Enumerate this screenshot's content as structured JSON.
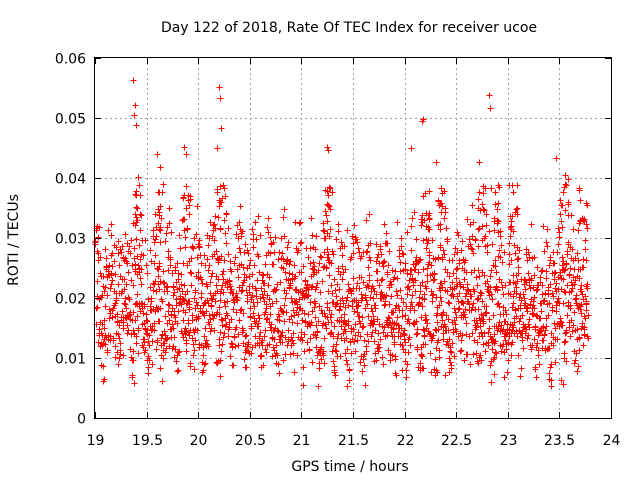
{
  "chart_data": {
    "type": "scatter",
    "title": "Day 122 of 2018, Rate Of TEC Index for receiver ucoe",
    "xlabel": "GPS time / hours",
    "ylabel": "ROTI / TECUs",
    "xlim": [
      19,
      24
    ],
    "ylim": [
      0,
      0.06
    ],
    "x_ticks": [
      19,
      19.5,
      20,
      20.5,
      21,
      21.5,
      22,
      22.5,
      23,
      23.5,
      24
    ],
    "x_tick_labels": [
      "19",
      "19.5",
      "20",
      "20.5",
      "21",
      "21.5",
      "22",
      "22.5",
      "23",
      "23.5",
      "24"
    ],
    "y_ticks": [
      0,
      0.01,
      0.02,
      0.03,
      0.04,
      0.05,
      0.06
    ],
    "y_tick_labels": [
      "0",
      "0.01",
      "0.02",
      "0.03",
      "0.04",
      "0.05",
      "0.06"
    ],
    "grid": true,
    "marker": "+",
    "series_color": "#ff0000",
    "data_range_x": [
      19.0,
      23.78
    ],
    "typical_band_y": [
      0.006,
      0.034
    ],
    "highlights": [
      {
        "x": 19.37,
        "y": 0.0563
      },
      {
        "x": 19.39,
        "y": 0.0522
      },
      {
        "x": 19.38,
        "y": 0.0505
      },
      {
        "x": 19.4,
        "y": 0.0488
      },
      {
        "x": 19.42,
        "y": 0.0401
      },
      {
        "x": 19.6,
        "y": 0.044
      },
      {
        "x": 19.63,
        "y": 0.0418
      },
      {
        "x": 19.86,
        "y": 0.0451
      },
      {
        "x": 19.88,
        "y": 0.044
      },
      {
        "x": 20.2,
        "y": 0.0552
      },
      {
        "x": 20.21,
        "y": 0.0533
      },
      {
        "x": 20.22,
        "y": 0.0484
      },
      {
        "x": 20.18,
        "y": 0.045
      },
      {
        "x": 21.25,
        "y": 0.0451
      },
      {
        "x": 21.26,
        "y": 0.0447
      },
      {
        "x": 22.06,
        "y": 0.045
      },
      {
        "x": 22.18,
        "y": 0.0499
      },
      {
        "x": 22.17,
        "y": 0.0495
      },
      {
        "x": 22.3,
        "y": 0.0427
      },
      {
        "x": 22.82,
        "y": 0.0538
      },
      {
        "x": 22.83,
        "y": 0.0517
      },
      {
        "x": 22.72,
        "y": 0.0426
      },
      {
        "x": 23.47,
        "y": 0.0433
      },
      {
        "x": 23.55,
        "y": 0.0405
      },
      {
        "x": 23.58,
        "y": 0.0398
      }
    ]
  }
}
